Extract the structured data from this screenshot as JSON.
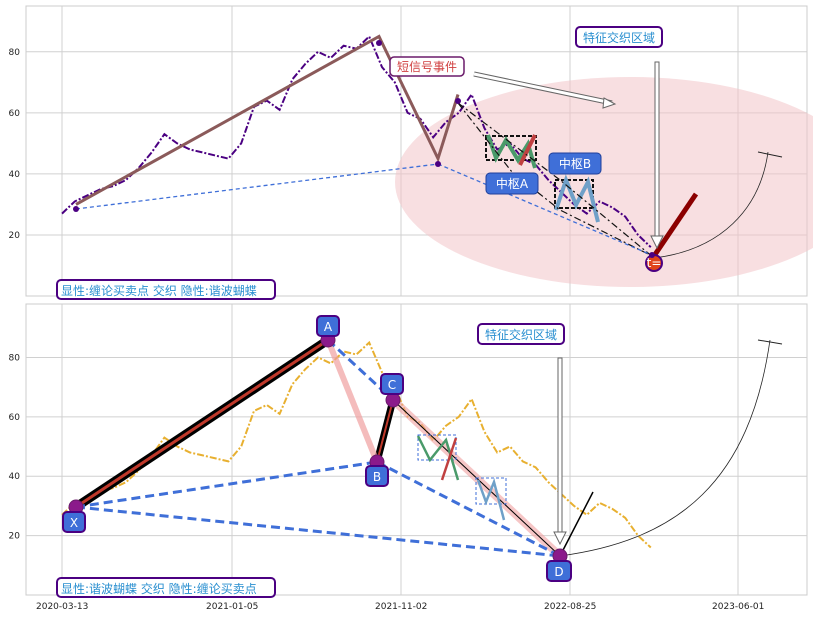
{
  "chart_data": [
    {
      "type": "line",
      "panel": "top",
      "ylim": [
        0,
        95
      ],
      "yticks": [
        20,
        40,
        60,
        80
      ],
      "grid": true,
      "xaxis": {
        "ticks": [
          "",
          "",
          "",
          "",
          ""
        ],
        "show_labels": false
      },
      "series": [
        {
          "kind": "price",
          "color": "#4b0082",
          "style": "dashdot",
          "points": [
            [
              0.0,
              27
            ],
            [
              0.02,
              31
            ],
            [
              0.04,
              33
            ],
            [
              0.06,
              35
            ],
            [
              0.08,
              36
            ],
            [
              0.1,
              38
            ],
            [
              0.12,
              42
            ],
            [
              0.14,
              47
            ],
            [
              0.16,
              53
            ],
            [
              0.18,
              50
            ],
            [
              0.2,
              48
            ],
            [
              0.22,
              47
            ],
            [
              0.24,
              46
            ],
            [
              0.26,
              45
            ],
            [
              0.28,
              50
            ],
            [
              0.3,
              62
            ],
            [
              0.32,
              64
            ],
            [
              0.34,
              61
            ],
            [
              0.36,
              71
            ],
            [
              0.38,
              76
            ],
            [
              0.4,
              80
            ],
            [
              0.42,
              78
            ],
            [
              0.44,
              82
            ],
            [
              0.46,
              81
            ],
            [
              0.48,
              85
            ],
            [
              0.5,
              75
            ],
            [
              0.52,
              70
            ],
            [
              0.54,
              60
            ],
            [
              0.56,
              58
            ],
            [
              0.58,
              52
            ],
            [
              0.6,
              57
            ],
            [
              0.62,
              60
            ],
            [
              0.64,
              66
            ],
            [
              0.66,
              55
            ],
            [
              0.68,
              48
            ],
            [
              0.7,
              50
            ],
            [
              0.72,
              45
            ],
            [
              0.74,
              43
            ],
            [
              0.76,
              38
            ],
            [
              0.78,
              34
            ],
            [
              0.8,
              30
            ],
            [
              0.82,
              27
            ],
            [
              0.84,
              31
            ],
            [
              0.86,
              29
            ],
            [
              0.88,
              26
            ],
            [
              0.9,
              20
            ],
            [
              0.92,
              16
            ]
          ]
        },
        {
          "kind": "bi_stroke",
          "color": "#8b5a5a",
          "points": [
            [
              0.04,
              30
            ],
            [
              0.48,
              85
            ],
            [
              0.57,
              45
            ],
            [
              0.61,
              66
            ]
          ]
        }
      ],
      "annotations": [
        {
          "text": "短信号事件",
          "color": "#d04040",
          "border": "#6a1a6a"
        },
        {
          "text": "特征交织区域",
          "color": "#2a8fd0",
          "border": "#4b0082"
        },
        {
          "text": "中枢A",
          "color": "#ffffff",
          "fill": "#3f6fd8"
        },
        {
          "text": "中枢B",
          "color": "#ffffff",
          "fill": "#3f6fd8"
        },
        {
          "text": "t=",
          "color": "#ffffff",
          "fill": "#e0441a"
        }
      ],
      "caption": "显性:缠论买卖点 交织 隐性:谐波蝴蝶"
    },
    {
      "type": "line",
      "panel": "bottom",
      "ylim": [
        0,
        98
      ],
      "yticks": [
        20,
        40,
        60,
        80
      ],
      "grid": true,
      "xaxis": {
        "ticks": [
          "2020-03-13",
          "2021-01-05",
          "2021-11-02",
          "2022-08-25",
          "2023-06-01"
        ]
      },
      "series": [
        {
          "kind": "price",
          "color": "#e8b030",
          "style": "dashdot"
        },
        {
          "kind": "harmonic_XA",
          "color": "#000000",
          "points": [
            [
              "X",
              30
            ],
            [
              "A",
              85
            ]
          ]
        }
      ],
      "points": [
        {
          "label": "X",
          "y": 30
        },
        {
          "label": "A",
          "y": 85
        },
        {
          "label": "B",
          "y": 45
        },
        {
          "label": "C",
          "y": 66
        },
        {
          "label": "D",
          "y": 14
        }
      ],
      "annotations": [
        {
          "text": "特征交织区域",
          "color": "#2a8fd0",
          "border": "#4b0082"
        }
      ],
      "caption": "显性:谐波蝴蝶 交织 隐性:缠论买卖点"
    }
  ]
}
